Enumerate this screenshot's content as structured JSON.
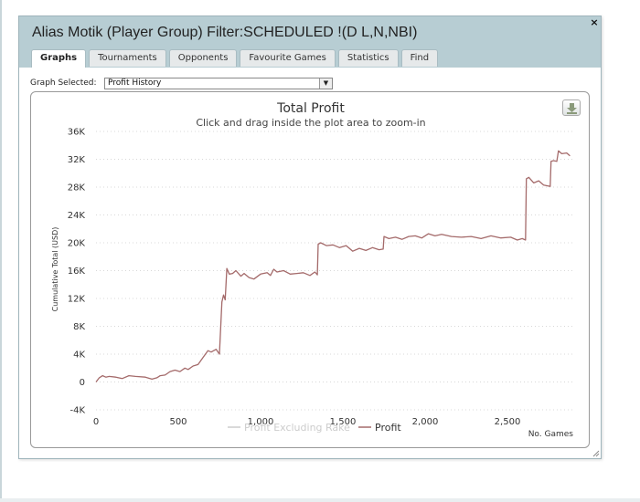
{
  "window": {
    "title": "Alias Motik (Player Group) Filter:SCHEDULED !(D L,N,NBI)",
    "close_glyph": "×"
  },
  "tabs": [
    {
      "label": "Graphs",
      "active": true
    },
    {
      "label": "Tournaments",
      "active": false
    },
    {
      "label": "Opponents",
      "active": false
    },
    {
      "label": "Favourite Games",
      "active": false
    },
    {
      "label": "Statistics",
      "active": false
    },
    {
      "label": "Find",
      "active": false
    }
  ],
  "graph_selector": {
    "label": "Graph Selected:",
    "value": "Profit History"
  },
  "chart_data": {
    "type": "line",
    "title": "Total Profit",
    "subtitle": "Click and drag inside the plot area to zoom-in",
    "xlabel": "No. Games",
    "ylabel": "Cumulative Total (USD)",
    "xlim": [
      0,
      2900
    ],
    "ylim": [
      -4000,
      36000
    ],
    "x_ticks": [
      0,
      500,
      1000,
      1500,
      2000,
      2500
    ],
    "x_tick_labels": [
      "0",
      "500",
      "1,000",
      "1,500",
      "2,000",
      "2,500"
    ],
    "y_ticks": [
      -4000,
      0,
      4000,
      8000,
      12000,
      16000,
      20000,
      24000,
      28000,
      32000,
      36000
    ],
    "y_tick_labels": [
      "-4K",
      "0",
      "4K",
      "8K",
      "12K",
      "16K",
      "20K",
      "24K",
      "28K",
      "32K",
      "36K"
    ],
    "grid": true,
    "legend_position": "bottom-center",
    "series": [
      {
        "name": "Profit Excluding Rake",
        "color": "#cccccc",
        "visible": false,
        "x": [],
        "y": []
      },
      {
        "name": "Profit",
        "color": "#a46a6a",
        "visible": true,
        "x": [
          0,
          20,
          40,
          60,
          80,
          120,
          160,
          200,
          240,
          300,
          340,
          370,
          390,
          420,
          450,
          480,
          510,
          540,
          560,
          590,
          620,
          650,
          680,
          700,
          730,
          750,
          765,
          775,
          785,
          795,
          810,
          830,
          850,
          880,
          900,
          930,
          960,
          1000,
          1040,
          1060,
          1080,
          1100,
          1140,
          1180,
          1220,
          1260,
          1300,
          1330,
          1345,
          1350,
          1365,
          1400,
          1440,
          1480,
          1520,
          1560,
          1600,
          1640,
          1680,
          1720,
          1745,
          1750,
          1780,
          1820,
          1860,
          1900,
          1940,
          1980,
          2020,
          2060,
          2100,
          2160,
          2220,
          2280,
          2340,
          2400,
          2460,
          2520,
          2560,
          2590,
          2610,
          2615,
          2630,
          2660,
          2690,
          2720,
          2740,
          2760,
          2765,
          2780,
          2800,
          2810,
          2830,
          2860,
          2880
        ],
        "y": [
          0,
          600,
          900,
          700,
          800,
          700,
          500,
          900,
          800,
          700,
          400,
          600,
          900,
          1000,
          1500,
          1700,
          1500,
          2000,
          1800,
          2300,
          2500,
          3500,
          4500,
          4300,
          4700,
          4000,
          11500,
          12500,
          11800,
          16300,
          15500,
          15600,
          16000,
          15200,
          15600,
          15000,
          14800,
          15500,
          15700,
          15300,
          16200,
          15800,
          16000,
          15500,
          15600,
          15700,
          15300,
          15800,
          15400,
          19800,
          20000,
          19600,
          19700,
          19300,
          19600,
          18800,
          19200,
          18900,
          19300,
          19000,
          19100,
          20900,
          20600,
          20800,
          20500,
          20900,
          21000,
          20700,
          21300,
          21000,
          21200,
          20900,
          20800,
          20900,
          20600,
          21000,
          20700,
          20800,
          20400,
          20600,
          20400,
          29200,
          29400,
          28600,
          28900,
          28300,
          28200,
          28100,
          31700,
          31800,
          31700,
          33200,
          32800,
          32900,
          32500
        ]
      }
    ]
  }
}
